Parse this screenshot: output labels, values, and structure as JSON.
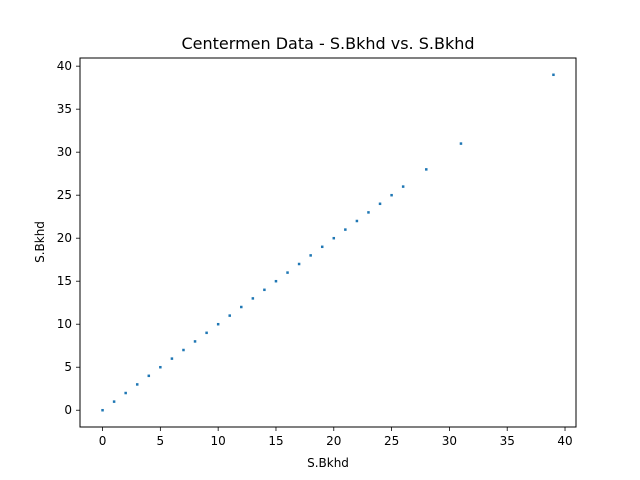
{
  "chart_data": {
    "type": "scatter",
    "title": "Centermen Data - S.Bkhd vs. S.Bkhd",
    "xlabel": "S.Bkhd",
    "ylabel": "S.Bkhd",
    "xlim": [
      -1.95,
      40.95
    ],
    "ylim": [
      -1.95,
      40.95
    ],
    "x_ticks": [
      0,
      5,
      10,
      15,
      20,
      25,
      30,
      35,
      40
    ],
    "y_ticks": [
      0,
      5,
      10,
      15,
      20,
      25,
      30,
      35,
      40
    ],
    "x_tick_labels": [
      "0",
      "5",
      "10",
      "15",
      "20",
      "25",
      "30",
      "35",
      "40"
    ],
    "y_tick_labels": [
      "0",
      "5",
      "10",
      "15",
      "20",
      "25",
      "30",
      "35",
      "40"
    ],
    "grid": false,
    "marker_color": "#1f77b4",
    "series": [
      {
        "x": [
          0,
          1,
          2,
          3,
          4,
          5,
          6,
          7,
          8,
          9,
          10,
          11,
          12,
          13,
          14,
          15,
          16,
          17,
          18,
          19,
          20,
          21,
          22,
          23,
          24,
          25,
          26,
          28,
          31,
          39
        ],
        "y": [
          0,
          1,
          2,
          3,
          4,
          5,
          6,
          7,
          8,
          9,
          10,
          11,
          12,
          13,
          14,
          15,
          16,
          17,
          18,
          19,
          20,
          21,
          22,
          23,
          24,
          25,
          26,
          28,
          31,
          39
        ]
      }
    ]
  }
}
